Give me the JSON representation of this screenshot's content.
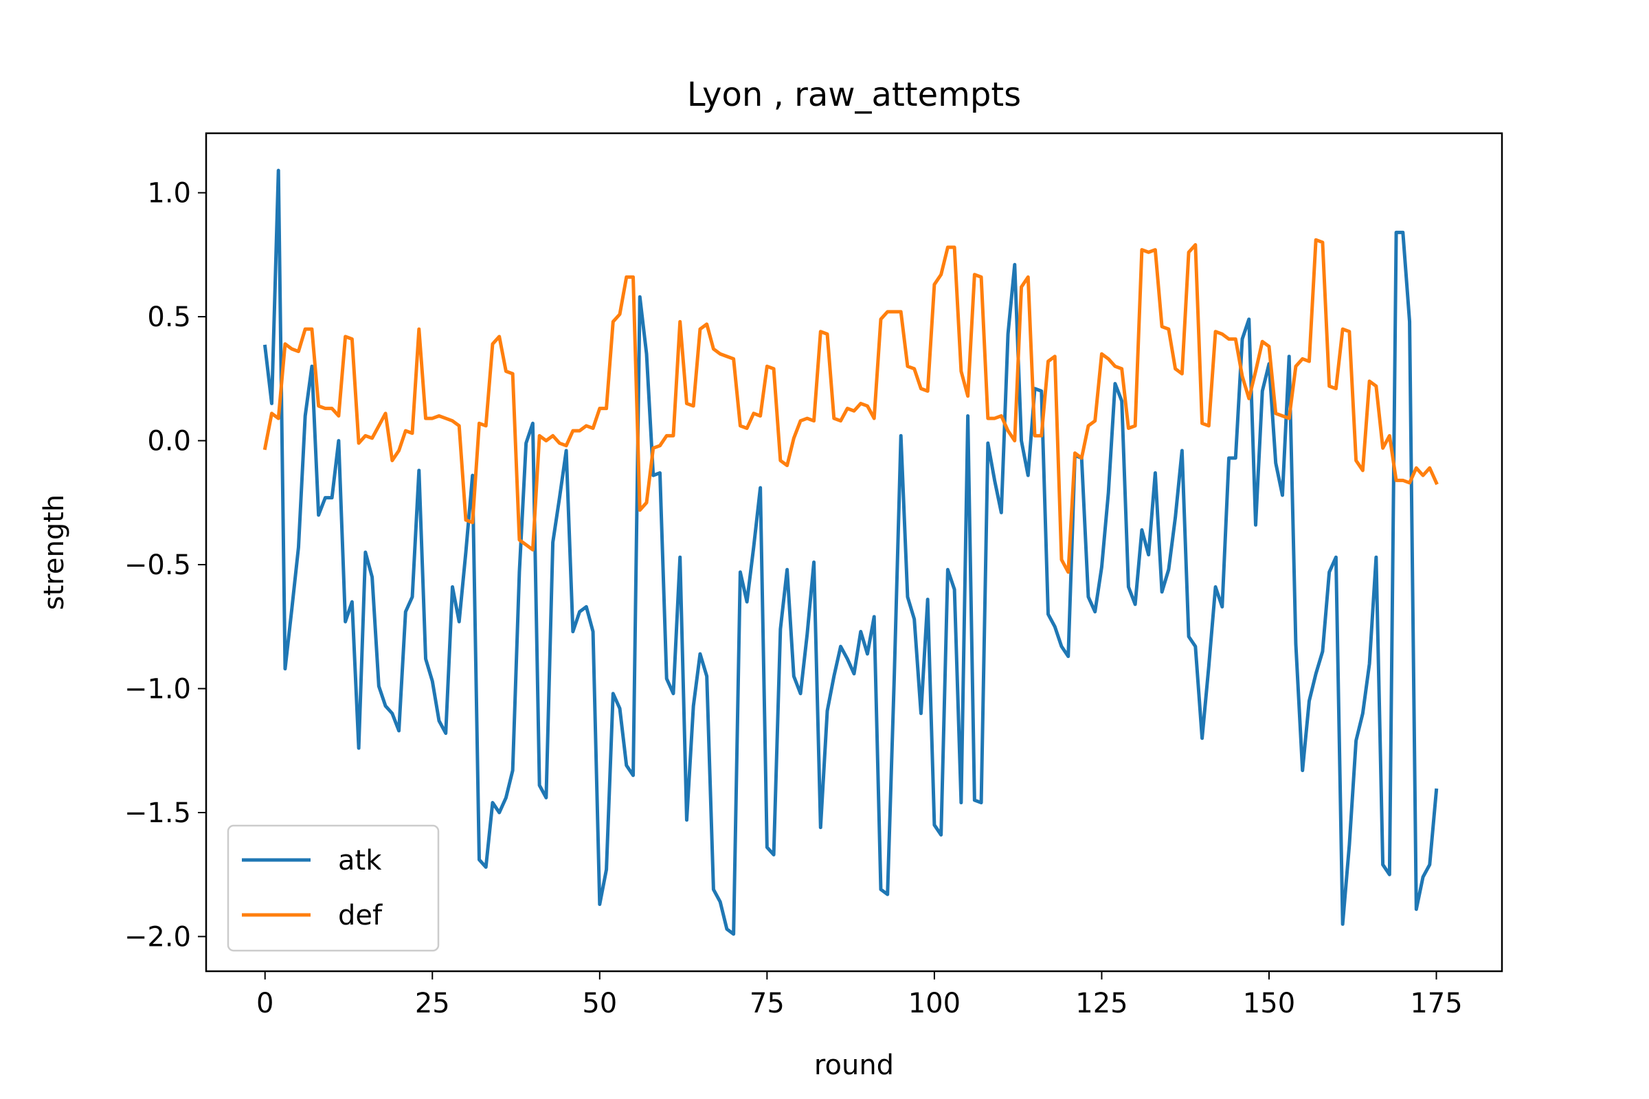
{
  "chart_data": {
    "type": "line",
    "title": "Lyon , raw_attempts",
    "xlabel": "round",
    "ylabel": "strength",
    "xlim": [
      -8.8,
      184.8
    ],
    "ylim": [
      -2.14,
      1.24
    ],
    "xticks": [
      0,
      25,
      50,
      75,
      100,
      125,
      150,
      175
    ],
    "yticks": [
      1.0,
      0.5,
      0.0,
      -0.5,
      -1.0,
      -1.5,
      -2.0
    ],
    "xtick_labels": [
      "0",
      "25",
      "50",
      "75",
      "100",
      "125",
      "150",
      "175"
    ],
    "ytick_labels": [
      "1.0",
      "0.5",
      "0.0",
      "−0.5",
      "−1.0",
      "−1.5",
      "−2.0"
    ],
    "grid": false,
    "legend": "lower-left",
    "series": [
      {
        "name": "atk",
        "color": "#1f77b4",
        "values": [
          0.38,
          0.15,
          1.09,
          -0.92,
          -0.68,
          -0.43,
          0.1,
          0.3,
          -0.3,
          -0.23,
          -0.23,
          0.0,
          -0.73,
          -0.65,
          -1.24,
          -0.45,
          -0.55,
          -0.99,
          -1.07,
          -1.1,
          -1.17,
          -0.69,
          -0.63,
          -0.12,
          -0.88,
          -0.97,
          -1.13,
          -1.18,
          -0.59,
          -0.73,
          -0.45,
          -0.14,
          -1.69,
          -1.72,
          -1.46,
          -1.5,
          -1.44,
          -1.33,
          -0.53,
          -0.01,
          0.07,
          -1.39,
          -1.44,
          -0.41,
          -0.23,
          -0.04,
          -0.77,
          -0.69,
          -0.67,
          -0.77,
          -1.87,
          -1.73,
          -1.02,
          -1.08,
          -1.31,
          -1.35,
          0.58,
          0.35,
          -0.14,
          -0.13,
          -0.96,
          -1.02,
          -0.47,
          -1.53,
          -1.07,
          -0.86,
          -0.95,
          -1.81,
          -1.86,
          -1.97,
          -1.99,
          -0.53,
          -0.65,
          -0.43,
          -0.19,
          -1.64,
          -1.67,
          -0.76,
          -0.52,
          -0.95,
          -1.02,
          -0.78,
          -0.49,
          -1.56,
          -1.09,
          -0.95,
          -0.83,
          -0.88,
          -0.94,
          -0.77,
          -0.86,
          -0.71,
          -1.81,
          -1.83,
          -0.96,
          0.02,
          -0.63,
          -0.72,
          -1.1,
          -0.64,
          -1.55,
          -1.59,
          -0.52,
          -0.6,
          -1.46,
          0.1,
          -1.45,
          -1.46,
          -0.01,
          -0.16,
          -0.29,
          0.43,
          0.71,
          0.0,
          -0.14,
          0.21,
          0.2,
          -0.7,
          -0.75,
          -0.83,
          -0.87,
          -0.06,
          -0.07,
          -0.63,
          -0.69,
          -0.51,
          -0.21,
          0.23,
          0.16,
          -0.59,
          -0.66,
          -0.36,
          -0.46,
          -0.13,
          -0.61,
          -0.52,
          -0.31,
          -0.04,
          -0.79,
          -0.83,
          -1.2,
          -0.91,
          -0.59,
          -0.67,
          -0.07,
          -0.07,
          0.41,
          0.49,
          -0.34,
          0.2,
          0.31,
          -0.09,
          -0.22,
          0.34,
          -0.82,
          -1.33,
          -1.05,
          -0.94,
          -0.85,
          -0.53,
          -0.47,
          -1.95,
          -1.63,
          -1.21,
          -1.1,
          -0.9,
          -0.47,
          -1.71,
          -1.75,
          0.84,
          0.84,
          0.48,
          -1.89,
          -1.76,
          -1.71,
          -1.41
        ]
      },
      {
        "name": "def",
        "color": "#ff7f0e",
        "values": [
          -0.03,
          0.11,
          0.09,
          0.39,
          0.37,
          0.36,
          0.45,
          0.45,
          0.14,
          0.13,
          0.13,
          0.1,
          0.42,
          0.41,
          -0.01,
          0.02,
          0.01,
          0.06,
          0.11,
          -0.08,
          -0.04,
          0.04,
          0.03,
          0.45,
          0.09,
          0.09,
          0.1,
          0.09,
          0.08,
          0.06,
          -0.32,
          -0.33,
          0.07,
          0.06,
          0.39,
          0.42,
          0.28,
          0.27,
          -0.4,
          -0.42,
          -0.44,
          0.02,
          0.0,
          0.02,
          -0.01,
          -0.02,
          0.04,
          0.04,
          0.06,
          0.05,
          0.13,
          0.13,
          0.48,
          0.51,
          0.66,
          0.66,
          -0.28,
          -0.25,
          -0.03,
          -0.02,
          0.02,
          0.02,
          0.48,
          0.15,
          0.14,
          0.45,
          0.47,
          0.37,
          0.35,
          0.34,
          0.33,
          0.06,
          0.05,
          0.11,
          0.1,
          0.3,
          0.29,
          -0.08,
          -0.1,
          0.01,
          0.08,
          0.09,
          0.08,
          0.44,
          0.43,
          0.09,
          0.08,
          0.13,
          0.12,
          0.15,
          0.14,
          0.09,
          0.49,
          0.52,
          0.52,
          0.52,
          0.3,
          0.29,
          0.21,
          0.2,
          0.63,
          0.67,
          0.78,
          0.78,
          0.28,
          0.18,
          0.67,
          0.66,
          0.09,
          0.09,
          0.1,
          0.04,
          0.0,
          0.62,
          0.66,
          0.02,
          0.02,
          0.32,
          0.34,
          -0.48,
          -0.53,
          -0.05,
          -0.07,
          0.06,
          0.08,
          0.35,
          0.33,
          0.3,
          0.29,
          0.05,
          0.06,
          0.77,
          0.76,
          0.77,
          0.46,
          0.45,
          0.29,
          0.27,
          0.76,
          0.79,
          0.07,
          0.06,
          0.44,
          0.43,
          0.41,
          0.41,
          0.26,
          0.17,
          0.28,
          0.4,
          0.38,
          0.11,
          0.1,
          0.09,
          0.3,
          0.33,
          0.32,
          0.81,
          0.8,
          0.22,
          0.21,
          0.45,
          0.44,
          -0.08,
          -0.12,
          0.24,
          0.22,
          -0.03,
          0.02,
          -0.16,
          -0.16,
          -0.17,
          -0.11,
          -0.14,
          -0.11,
          -0.17
        ]
      }
    ]
  }
}
